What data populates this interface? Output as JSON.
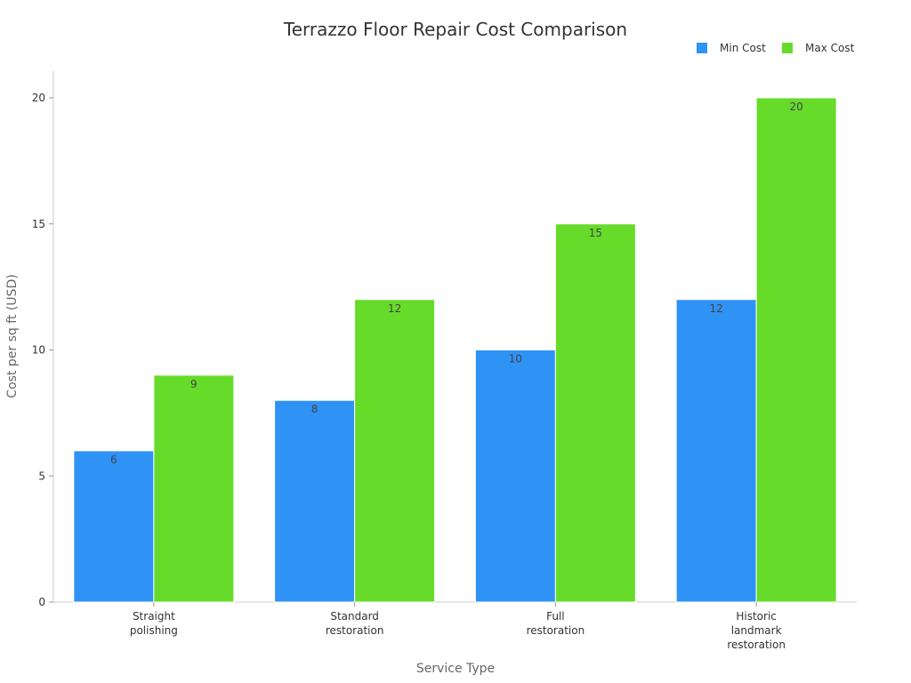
{
  "chart_data": {
    "type": "bar",
    "title": "Terrazzo Floor Repair Cost Comparison",
    "xlabel": "Service Type",
    "ylabel": "Cost per sq ft (USD)",
    "categories": [
      [
        "Straight",
        "polishing"
      ],
      [
        "Standard",
        "restoration"
      ],
      [
        "Full",
        "restoration"
      ],
      [
        "Historic",
        "landmark",
        "restoration"
      ]
    ],
    "series": [
      {
        "name": "Min Cost",
        "color": "#2f92f5",
        "values": [
          6,
          8,
          10,
          12
        ]
      },
      {
        "name": "Max Cost",
        "color": "#66db2a",
        "values": [
          9,
          12,
          15,
          20
        ]
      }
    ],
    "ylim": [
      0,
      20
    ],
    "yticks": [
      0,
      5,
      10,
      15,
      20
    ],
    "legend_position": "top-right",
    "grid": false
  }
}
